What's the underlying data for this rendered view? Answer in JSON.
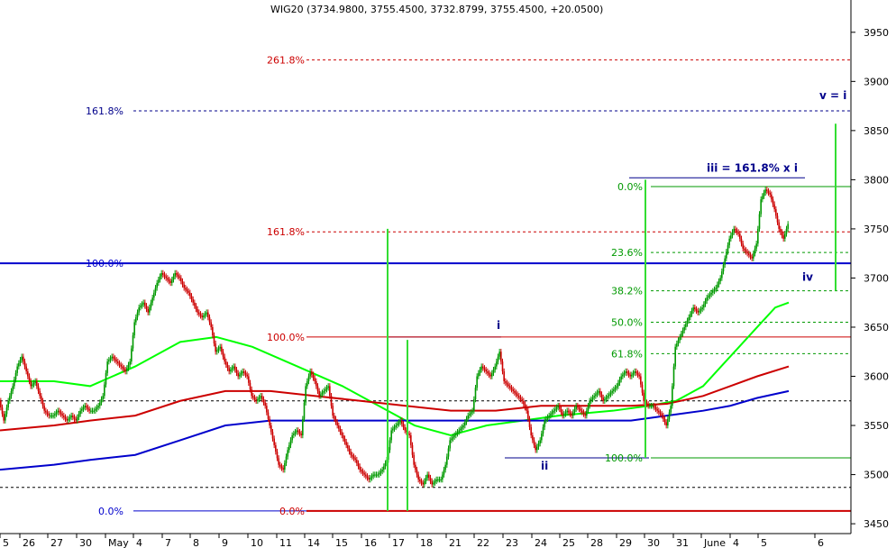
{
  "chart_data": {
    "type": "candlestick",
    "title": "WIG20 (3734.9800, 3755.4500, 3732.8799, 3755.4500, +20.0500)",
    "ylim": [
      3440,
      3970
    ],
    "y_ticks": [
      3450,
      3500,
      3550,
      3600,
      3650,
      3700,
      3750,
      3800,
      3850,
      3900,
      3950
    ],
    "x_labels": [
      "5",
      "26",
      "27",
      "30",
      "May",
      "4",
      "7",
      "8",
      "9",
      "10",
      "11",
      "14",
      "15",
      "16",
      "17",
      "18",
      "21",
      "22",
      "23",
      "24",
      "25",
      "28",
      "29",
      "30",
      "31",
      "June",
      "4",
      "5",
      "6"
    ],
    "price_path": [
      [
        0,
        3575
      ],
      [
        5,
        3555
      ],
      [
        10,
        3575
      ],
      [
        15,
        3590
      ],
      [
        20,
        3610
      ],
      [
        25,
        3620
      ],
      [
        30,
        3605
      ],
      [
        35,
        3590
      ],
      [
        40,
        3595
      ],
      [
        45,
        3580
      ],
      [
        50,
        3565
      ],
      [
        55,
        3560
      ],
      [
        60,
        3560
      ],
      [
        65,
        3565
      ],
      [
        70,
        3560
      ],
      [
        75,
        3555
      ],
      [
        80,
        3560
      ],
      [
        85,
        3555
      ],
      [
        90,
        3565
      ],
      [
        95,
        3570
      ],
      [
        100,
        3565
      ],
      [
        105,
        3565
      ],
      [
        110,
        3570
      ],
      [
        115,
        3580
      ],
      [
        120,
        3615
      ],
      [
        125,
        3620
      ],
      [
        130,
        3615
      ],
      [
        135,
        3610
      ],
      [
        140,
        3605
      ],
      [
        145,
        3615
      ],
      [
        150,
        3655
      ],
      [
        155,
        3670
      ],
      [
        160,
        3675
      ],
      [
        165,
        3665
      ],
      [
        170,
        3680
      ],
      [
        175,
        3695
      ],
      [
        180,
        3705
      ],
      [
        185,
        3700
      ],
      [
        190,
        3695
      ],
      [
        195,
        3705
      ],
      [
        200,
        3700
      ],
      [
        205,
        3690
      ],
      [
        210,
        3685
      ],
      [
        215,
        3675
      ],
      [
        220,
        3665
      ],
      [
        225,
        3660
      ],
      [
        230,
        3665
      ],
      [
        235,
        3650
      ],
      [
        240,
        3625
      ],
      [
        245,
        3630
      ],
      [
        250,
        3615
      ],
      [
        255,
        3605
      ],
      [
        260,
        3610
      ],
      [
        265,
        3600
      ],
      [
        270,
        3605
      ],
      [
        275,
        3600
      ],
      [
        280,
        3580
      ],
      [
        285,
        3575
      ],
      [
        290,
        3580
      ],
      [
        295,
        3570
      ],
      [
        300,
        3550
      ],
      [
        305,
        3530
      ],
      [
        310,
        3510
      ],
      [
        315,
        3505
      ],
      [
        320,
        3525
      ],
      [
        325,
        3540
      ],
      [
        330,
        3545
      ],
      [
        335,
        3540
      ],
      [
        340,
        3590
      ],
      [
        345,
        3605
      ],
      [
        350,
        3595
      ],
      [
        355,
        3580
      ],
      [
        360,
        3585
      ],
      [
        365,
        3590
      ],
      [
        370,
        3560
      ],
      [
        375,
        3550
      ],
      [
        380,
        3540
      ],
      [
        385,
        3530
      ],
      [
        390,
        3520
      ],
      [
        395,
        3515
      ],
      [
        400,
        3505
      ],
      [
        405,
        3500
      ],
      [
        410,
        3495
      ],
      [
        415,
        3500
      ],
      [
        420,
        3500
      ],
      [
        425,
        3505
      ],
      [
        430,
        3515
      ],
      [
        435,
        3545
      ],
      [
        440,
        3550
      ],
      [
        445,
        3555
      ],
      [
        450,
        3545
      ],
      [
        455,
        3540
      ],
      [
        460,
        3510
      ],
      [
        465,
        3495
      ],
      [
        470,
        3490
      ],
      [
        475,
        3500
      ],
      [
        480,
        3490
      ],
      [
        485,
        3495
      ],
      [
        490,
        3495
      ],
      [
        495,
        3510
      ],
      [
        500,
        3535
      ],
      [
        505,
        3540
      ],
      [
        510,
        3545
      ],
      [
        515,
        3550
      ],
      [
        520,
        3560
      ],
      [
        525,
        3565
      ],
      [
        530,
        3600
      ],
      [
        535,
        3610
      ],
      [
        540,
        3605
      ],
      [
        545,
        3600
      ],
      [
        550,
        3610
      ],
      [
        555,
        3625
      ],
      [
        560,
        3595
      ],
      [
        565,
        3590
      ],
      [
        570,
        3585
      ],
      [
        575,
        3580
      ],
      [
        580,
        3575
      ],
      [
        585,
        3565
      ],
      [
        590,
        3540
      ],
      [
        595,
        3525
      ],
      [
        600,
        3535
      ],
      [
        605,
        3555
      ],
      [
        610,
        3560
      ],
      [
        615,
        3565
      ],
      [
        620,
        3570
      ],
      [
        625,
        3560
      ],
      [
        630,
        3565
      ],
      [
        635,
        3560
      ],
      [
        640,
        3570
      ],
      [
        645,
        3565
      ],
      [
        650,
        3560
      ],
      [
        655,
        3575
      ],
      [
        660,
        3580
      ],
      [
        665,
        3585
      ],
      [
        670,
        3575
      ],
      [
        675,
        3580
      ],
      [
        680,
        3585
      ],
      [
        685,
        3590
      ],
      [
        690,
        3600
      ],
      [
        695,
        3605
      ],
      [
        700,
        3600
      ],
      [
        705,
        3605
      ],
      [
        710,
        3600
      ],
      [
        715,
        3575
      ],
      [
        720,
        3570
      ],
      [
        725,
        3570
      ],
      [
        730,
        3565
      ],
      [
        735,
        3560
      ],
      [
        740,
        3550
      ],
      [
        745,
        3570
      ],
      [
        750,
        3630
      ],
      [
        755,
        3640
      ],
      [
        760,
        3650
      ],
      [
        765,
        3660
      ],
      [
        770,
        3670
      ],
      [
        775,
        3665
      ],
      [
        780,
        3670
      ],
      [
        785,
        3680
      ],
      [
        790,
        3685
      ],
      [
        795,
        3690
      ],
      [
        800,
        3700
      ],
      [
        805,
        3720
      ],
      [
        810,
        3740
      ],
      [
        815,
        3750
      ],
      [
        820,
        3745
      ],
      [
        825,
        3730
      ],
      [
        830,
        3725
      ],
      [
        835,
        3720
      ],
      [
        840,
        3735
      ],
      [
        845,
        3780
      ],
      [
        850,
        3790
      ],
      [
        855,
        3785
      ],
      [
        860,
        3770
      ],
      [
        865,
        3750
      ],
      [
        870,
        3740
      ],
      [
        875,
        3755
      ]
    ],
    "series": [
      {
        "name": "",
        "color": "#00ff00",
        "points": [
          [
            0,
            3595
          ],
          [
            60,
            3595
          ],
          [
            100,
            3590
          ],
          [
            150,
            3610
          ],
          [
            200,
            3635
          ],
          [
            240,
            3640
          ],
          [
            280,
            3630
          ],
          [
            330,
            3610
          ],
          [
            380,
            3590
          ],
          [
            430,
            3565
          ],
          [
            460,
            3550
          ],
          [
            500,
            3540
          ],
          [
            540,
            3550
          ],
          [
            580,
            3555
          ],
          [
            620,
            3560
          ],
          [
            680,
            3565
          ],
          [
            720,
            3570
          ],
          [
            750,
            3575
          ],
          [
            780,
            3590
          ],
          [
            800,
            3610
          ],
          [
            820,
            3630
          ],
          [
            840,
            3650
          ],
          [
            860,
            3670
          ],
          [
            875,
            3675
          ]
        ]
      },
      {
        "name": "",
        "color": "#cc0000",
        "points": [
          [
            0,
            3545
          ],
          [
            60,
            3550
          ],
          [
            100,
            3555
          ],
          [
            150,
            3560
          ],
          [
            200,
            3575
          ],
          [
            250,
            3585
          ],
          [
            300,
            3585
          ],
          [
            350,
            3580
          ],
          [
            400,
            3575
          ],
          [
            450,
            3570
          ],
          [
            500,
            3565
          ],
          [
            550,
            3565
          ],
          [
            600,
            3570
          ],
          [
            650,
            3570
          ],
          [
            700,
            3570
          ],
          [
            740,
            3572
          ],
          [
            780,
            3580
          ],
          [
            810,
            3590
          ],
          [
            840,
            3600
          ],
          [
            875,
            3610
          ]
        ]
      },
      {
        "name": "",
        "color": "#0000cc",
        "points": [
          [
            0,
            3505
          ],
          [
            60,
            3510
          ],
          [
            100,
            3515
          ],
          [
            150,
            3520
          ],
          [
            200,
            3535
          ],
          [
            250,
            3550
          ],
          [
            300,
            3555
          ],
          [
            350,
            3555
          ],
          [
            400,
            3555
          ],
          [
            450,
            3555
          ],
          [
            500,
            3555
          ],
          [
            550,
            3555
          ],
          [
            600,
            3555
          ],
          [
            650,
            3555
          ],
          [
            700,
            3555
          ],
          [
            740,
            3560
          ],
          [
            780,
            3565
          ],
          [
            810,
            3570
          ],
          [
            840,
            3578
          ],
          [
            875,
            3585
          ]
        ]
      }
    ],
    "fib_levels": [
      {
        "label": "261.8%",
        "value": 3922,
        "color": "#cc0000",
        "x0": 340,
        "x1": 944,
        "label_x": 338,
        "style": "dashed"
      },
      {
        "label": "161.8%",
        "value": 3870,
        "color": "#00008b",
        "x0": 148,
        "x1": 944,
        "label_x": 137,
        "style": "dashed"
      },
      {
        "label": "161.8%",
        "value": 3747,
        "color": "#cc0000",
        "x0": 340,
        "x1": 944,
        "label_x": 338,
        "style": "dashed"
      },
      {
        "label": "100.0%",
        "value": 3715,
        "color": "#0000cc",
        "x0": 0,
        "x1": 944,
        "label_x": 137,
        "style": "solid",
        "width": 2
      },
      {
        "label": "100.0%",
        "value": 3640,
        "color": "#cc0000",
        "x0": 340,
        "x1": 944,
        "label_x": 338,
        "style": "solid"
      },
      {
        "label": "0.0%",
        "value": 3463,
        "color": "#0000cc",
        "x0": 148,
        "x1": 340,
        "label_x": 137,
        "style": "solid"
      },
      {
        "label": "0.0%",
        "value": 3463,
        "color": "#cc0000",
        "x0": 340,
        "x1": 944,
        "label_x": 338,
        "style": "solid",
        "width": 2
      },
      {
        "label": "0.0%",
        "value": 3793,
        "color": "#009900",
        "x0": 722,
        "x1": 944,
        "label_x": 713,
        "style": "solid"
      },
      {
        "label": "23.6%",
        "value": 3726,
        "color": "#009900",
        "x0": 722,
        "x1": 944,
        "label_x": 713,
        "style": "dashed"
      },
      {
        "label": "38.2%",
        "value": 3687,
        "color": "#009900",
        "x0": 722,
        "x1": 944,
        "label_x": 713,
        "style": "dashed"
      },
      {
        "label": "50.0%",
        "value": 3655,
        "color": "#009900",
        "x0": 722,
        "x1": 944,
        "label_x": 713,
        "style": "dashed"
      },
      {
        "label": "61.8%",
        "value": 3623,
        "color": "#009900",
        "x0": 722,
        "x1": 944,
        "label_x": 713,
        "style": "dashed"
      },
      {
        "label": "100.0%",
        "value": 3517,
        "color": "#009900",
        "x0": 722,
        "x1": 944,
        "label_x": 713,
        "style": "solid"
      }
    ],
    "other_lines": [
      {
        "name": "upper-dash-1",
        "value": 3575,
        "color": "#000",
        "style": "dashed"
      },
      {
        "name": "lower-dash-1",
        "value": 3487,
        "color": "#000",
        "style": "dashed"
      },
      {
        "name": "wave-i-line",
        "value": 3640,
        "color": "#00008b",
        "x0": 430,
        "x1": 556
      },
      {
        "name": "wave-ii-line",
        "value": 3517,
        "color": "#00008b",
        "x0": 560,
        "x1": 720
      },
      {
        "name": "wave-iii-line",
        "value": 3802,
        "color": "#00008b",
        "x0": 698,
        "x1": 893
      }
    ],
    "vertical_lines": [
      {
        "name": "vline-1",
        "x": 430,
        "y_top": 3750,
        "y_bottom": 3463
      },
      {
        "name": "vline-2",
        "x": 452,
        "y_top": 3637,
        "y_bottom": 3463
      },
      {
        "name": "vline-3",
        "x": 716,
        "y_top": 3800,
        "y_bottom": 3517
      },
      {
        "name": "vline-4",
        "x": 927,
        "y_top": 3857,
        "y_bottom": 3687
      }
    ],
    "wave_labels": [
      {
        "text": "i",
        "x": 551,
        "value": 3648
      },
      {
        "text": "ii",
        "x": 600,
        "value": 3505
      },
      {
        "text": "iii = 161.8% x i",
        "x": 784,
        "value": 3808
      },
      {
        "text": "iv",
        "x": 890,
        "value": 3697
      },
      {
        "text": "v = i",
        "x": 909,
        "value": 3882
      }
    ]
  }
}
